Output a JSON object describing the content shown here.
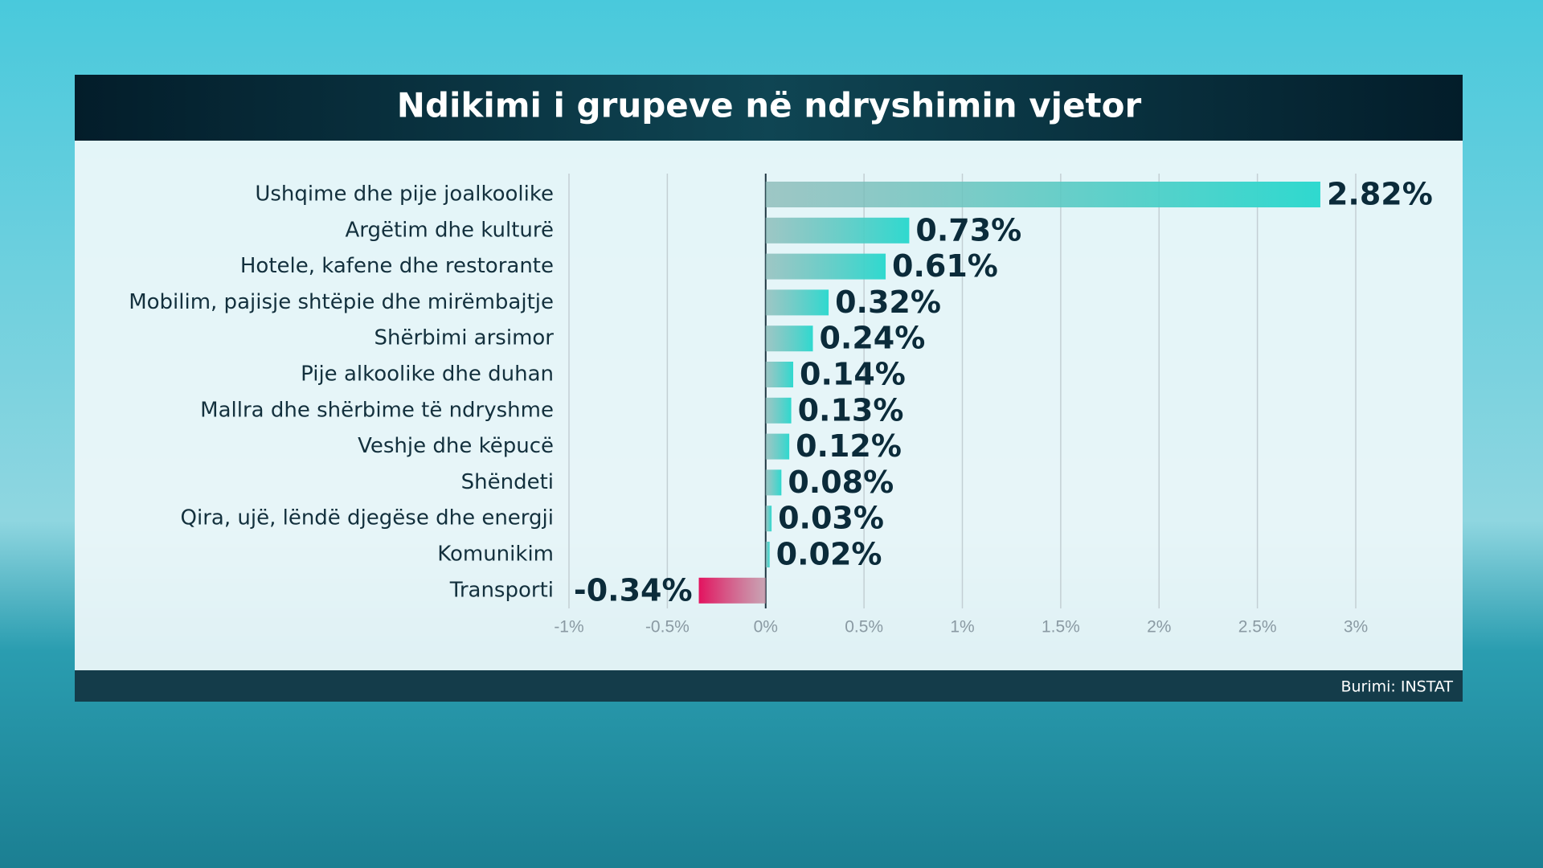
{
  "chart_data": {
    "type": "bar",
    "orientation": "horizontal",
    "title": "Ndikimi i grupeve në ndryshimin vjetor",
    "categories": [
      "Ushqime dhe pije joalkoolike",
      "Argëtim dhe kulturë",
      "Hotele, kafene dhe restorante",
      "Mobilim, pajisje shtëpie dhe mirëmbajtje",
      "Shërbimi arsimor",
      "Pije alkoolike dhe duhan",
      "Mallra dhe shërbime të ndryshme",
      "Veshje dhe këpucë",
      "Shëndeti",
      "Qira, ujë, lëndë djegëse dhe energji",
      "Komunikim",
      "Transporti"
    ],
    "values": [
      2.82,
      0.73,
      0.61,
      0.32,
      0.24,
      0.14,
      0.13,
      0.12,
      0.08,
      0.03,
      0.02,
      -0.34
    ],
    "value_labels": [
      "2.82%",
      "0.73%",
      "0.61%",
      "0.32%",
      "0.24%",
      "0.14%",
      "0.13%",
      "0.12%",
      "0.08%",
      "0.03%",
      "0.02%",
      "-0.34%"
    ],
    "color": "#2fd9cf",
    "negative_color": "#e3135f",
    "xlim": [
      -1,
      3
    ],
    "xticks": [
      {
        "value": -1,
        "label": "-1%"
      },
      {
        "value": -0.5,
        "label": "-0.5%"
      },
      {
        "value": 0,
        "label": "0%"
      },
      {
        "value": 0.5,
        "label": "0.5%"
      },
      {
        "value": 1,
        "label": "1%"
      },
      {
        "value": 1.5,
        "label": "1.5%"
      },
      {
        "value": 2,
        "label": "2%"
      },
      {
        "value": 2.5,
        "label": "2.5%"
      },
      {
        "value": 3,
        "label": "3%"
      }
    ],
    "grid": true,
    "source": "Burimi: INSTAT"
  }
}
